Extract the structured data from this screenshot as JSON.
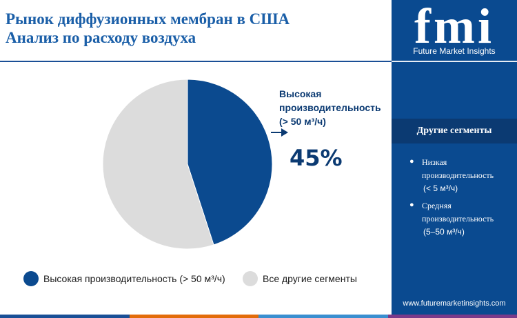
{
  "header": {
    "title_line1": "Рынок диффузионных мембран в США",
    "title_line2": "Анализ по расходу воздуха"
  },
  "brand": {
    "logo_text": "fmi",
    "logo_caption": "Future Market Insights",
    "website": "www.futuremarketinsights.com"
  },
  "sidebar": {
    "header": "Другие сегменты",
    "segments": [
      {
        "name": "Низкая производительность",
        "range": "(< 5 м³/ч)"
      },
      {
        "name": "Средняя производительность",
        "range": "(5–50 м³/ч)"
      }
    ]
  },
  "callout": {
    "label_line1": "Высокая",
    "label_line2": "производительность",
    "label_line3": "(> 50 м³/ч)",
    "value": "45%"
  },
  "legend": {
    "items": [
      {
        "label": "Высокая производительность (> 50 м³/ч)",
        "color": "#0b4a8f"
      },
      {
        "label": "Все другие сегменты",
        "color": "#dcdcdc"
      }
    ]
  },
  "colors": {
    "primary": "#0b4a8f",
    "other": "#dcdcdc",
    "sidebar": "#0a4a90",
    "bottom_bar": [
      "#1a4f96",
      "#e36c0a",
      "#3a8fd0",
      "#7a3a8a"
    ]
  },
  "chart_data": {
    "type": "pie",
    "title": "",
    "slices": [
      {
        "label": "Высокая производительность (> 50 м³/ч)",
        "value": 45,
        "color": "#0b4a8f"
      },
      {
        "label": "Все другие сегменты",
        "value": 55,
        "color": "#dcdcdc"
      }
    ],
    "start": "top",
    "direction": "clockwise",
    "legend_position": "bottom"
  }
}
